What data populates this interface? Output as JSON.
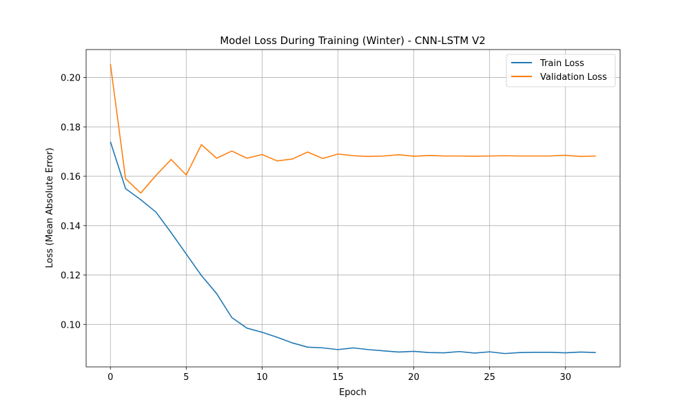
{
  "chart_data": {
    "type": "line",
    "title": "Model Loss During Training (Winter) - CNN-LSTM V2",
    "xlabel": "Epoch",
    "ylabel": "Loss (Mean Absolute Error)",
    "xlim": [
      -1.6,
      33.6
    ],
    "ylim": [
      0.0828,
      0.2113
    ],
    "xticks": [
      0,
      5,
      10,
      15,
      20,
      25,
      30
    ],
    "yticks": [
      0.1,
      0.12,
      0.14,
      0.16,
      0.18,
      0.2
    ],
    "ytick_labels": [
      "0.10",
      "0.12",
      "0.14",
      "0.16",
      "0.18",
      "0.20"
    ],
    "grid": true,
    "legend_position": "top-right",
    "x": [
      0,
      1,
      2,
      3,
      4,
      5,
      6,
      7,
      8,
      9,
      10,
      11,
      12,
      13,
      14,
      15,
      16,
      17,
      18,
      19,
      20,
      21,
      22,
      23,
      24,
      25,
      26,
      27,
      28,
      29,
      30,
      31,
      32
    ],
    "series": [
      {
        "name": "Train Loss",
        "color": "#1f77b4",
        "values": [
          0.174,
          0.155,
          0.1505,
          0.1455,
          0.1372,
          0.1285,
          0.1198,
          0.1125,
          0.1028,
          0.0985,
          0.0968,
          0.0948,
          0.0925,
          0.0908,
          0.0905,
          0.0898,
          0.0905,
          0.0898,
          0.0893,
          0.0888,
          0.0891,
          0.0886,
          0.0885,
          0.089,
          0.0884,
          0.0889,
          0.0882,
          0.0886,
          0.0887,
          0.0887,
          0.0885,
          0.0888,
          0.0886
        ]
      },
      {
        "name": "Validation Loss",
        "color": "#ff7f0e",
        "values": [
          0.2055,
          0.159,
          0.1532,
          0.1603,
          0.1668,
          0.1605,
          0.1728,
          0.1673,
          0.1702,
          0.1673,
          0.1688,
          0.1662,
          0.167,
          0.1698,
          0.1672,
          0.169,
          0.1683,
          0.168,
          0.1682,
          0.1687,
          0.1681,
          0.1684,
          0.1682,
          0.1682,
          0.1681,
          0.1682,
          0.1683,
          0.1682,
          0.1682,
          0.1682,
          0.1685,
          0.168,
          0.1682
        ]
      }
    ]
  }
}
